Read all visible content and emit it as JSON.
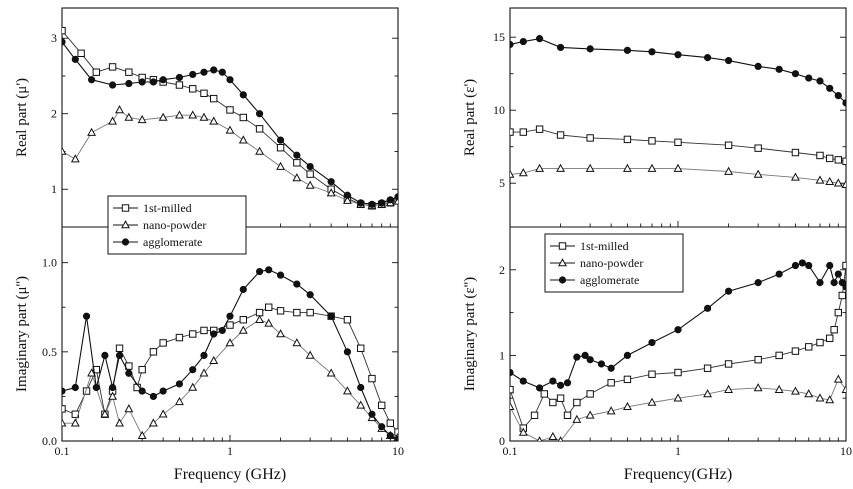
{
  "figure": {
    "background": "#ffffff",
    "ink": "#111111"
  },
  "chart_data": [
    {
      "type": "line",
      "panel": "permeability",
      "xlabel": "Frequency (GHz)",
      "xscale": "log",
      "xlim": [
        0.1,
        10
      ],
      "xticks": [
        0.1,
        1,
        10
      ],
      "xtick_labels": [
        "0.1",
        "1",
        "10"
      ],
      "legend": {
        "placement": "bottom-left of upper subplot",
        "entries": [
          {
            "label": "1st-milled",
            "marker": "open-square"
          },
          {
            "label": "nano-powder",
            "marker": "open-triangle"
          },
          {
            "label": "agglomerate",
            "marker": "filled-circle"
          }
        ]
      },
      "subplots": [
        {
          "ylabel": "Real part (μ')",
          "ylim": [
            0.5,
            3.4
          ],
          "yticks": [
            1,
            2,
            3
          ],
          "ytick_labels": [
            "1",
            "2",
            "3"
          ],
          "series": [
            {
              "name": "1st-milled",
              "marker": "open-square",
              "x": [
                0.1,
                0.13,
                0.16,
                0.2,
                0.25,
                0.3,
                0.35,
                0.4,
                0.5,
                0.6,
                0.7,
                0.8,
                1.0,
                1.2,
                1.5,
                2.0,
                2.5,
                3.0,
                4.0,
                5.0,
                6.0,
                7.0,
                8.0,
                9.0,
                10.0
              ],
              "y": [
                3.1,
                2.8,
                2.55,
                2.62,
                2.55,
                2.48,
                2.45,
                2.42,
                2.38,
                2.33,
                2.27,
                2.2,
                2.05,
                1.95,
                1.8,
                1.55,
                1.35,
                1.2,
                1.0,
                0.88,
                0.8,
                0.78,
                0.8,
                0.82,
                0.85
              ]
            },
            {
              "name": "nano-powder",
              "marker": "open-triangle",
              "x": [
                0.1,
                0.12,
                0.15,
                0.2,
                0.22,
                0.25,
                0.3,
                0.4,
                0.5,
                0.6,
                0.7,
                0.8,
                1.0,
                1.2,
                1.5,
                2.0,
                2.5,
                3.0,
                4.0,
                5.0,
                6.0,
                7.0,
                8.0,
                9.0,
                10.0
              ],
              "y": [
                1.5,
                1.4,
                1.75,
                1.9,
                2.05,
                1.95,
                1.92,
                1.95,
                1.98,
                1.98,
                1.95,
                1.9,
                1.78,
                1.65,
                1.5,
                1.3,
                1.15,
                1.05,
                0.95,
                0.85,
                0.8,
                0.78,
                0.8,
                0.82,
                0.84
              ]
            },
            {
              "name": "agglomerate",
              "marker": "filled-circle",
              "x": [
                0.1,
                0.12,
                0.15,
                0.2,
                0.25,
                0.3,
                0.35,
                0.4,
                0.5,
                0.6,
                0.7,
                0.8,
                0.9,
                1.0,
                1.2,
                1.5,
                2.0,
                2.5,
                3.0,
                4.0,
                5.0,
                6.0,
                7.0,
                8.0,
                9.0,
                10.0
              ],
              "y": [
                2.95,
                2.72,
                2.45,
                2.38,
                2.4,
                2.42,
                2.42,
                2.45,
                2.48,
                2.52,
                2.55,
                2.58,
                2.55,
                2.45,
                2.25,
                2.0,
                1.65,
                1.45,
                1.3,
                1.1,
                0.92,
                0.82,
                0.8,
                0.82,
                0.86,
                0.9
              ]
            }
          ]
        },
        {
          "ylabel": "Imaginary part (μ'')",
          "ylim": [
            0,
            1.2
          ],
          "yticks": [
            0,
            0.5,
            1.0
          ],
          "ytick_labels": [
            "0.0",
            "0.5",
            "1.0"
          ],
          "series": [
            {
              "name": "1st-milled",
              "marker": "open-square",
              "x": [
                0.1,
                0.12,
                0.14,
                0.16,
                0.18,
                0.2,
                0.22,
                0.25,
                0.28,
                0.3,
                0.35,
                0.4,
                0.5,
                0.6,
                0.7,
                0.8,
                1.0,
                1.2,
                1.5,
                1.7,
                2.0,
                2.5,
                3.0,
                4.0,
                5.0,
                6.0,
                7.0,
                8.0,
                9.0,
                10.0
              ],
              "y": [
                0.18,
                0.15,
                0.28,
                0.4,
                0.15,
                0.28,
                0.52,
                0.42,
                0.3,
                0.4,
                0.5,
                0.55,
                0.58,
                0.6,
                0.62,
                0.62,
                0.65,
                0.68,
                0.72,
                0.75,
                0.73,
                0.72,
                0.72,
                0.7,
                0.68,
                0.52,
                0.35,
                0.2,
                0.1,
                0.05
              ]
            },
            {
              "name": "nano-powder",
              "marker": "open-triangle",
              "x": [
                0.1,
                0.12,
                0.15,
                0.18,
                0.2,
                0.22,
                0.25,
                0.3,
                0.35,
                0.4,
                0.5,
                0.6,
                0.7,
                0.8,
                1.0,
                1.2,
                1.5,
                1.7,
                2.0,
                2.5,
                3.0,
                4.0,
                5.0,
                6.0,
                7.0,
                8.0,
                9.0,
                10.0
              ],
              "y": [
                0.1,
                0.1,
                0.38,
                0.15,
                0.25,
                0.1,
                0.18,
                0.03,
                0.1,
                0.15,
                0.22,
                0.3,
                0.38,
                0.45,
                0.55,
                0.62,
                0.68,
                0.66,
                0.6,
                0.55,
                0.48,
                0.38,
                0.28,
                0.2,
                0.13,
                0.07,
                0.03,
                0.02
              ]
            },
            {
              "name": "agglomerate",
              "marker": "filled-circle",
              "x": [
                0.1,
                0.12,
                0.14,
                0.16,
                0.18,
                0.2,
                0.22,
                0.25,
                0.3,
                0.35,
                0.4,
                0.5,
                0.6,
                0.7,
                0.8,
                0.9,
                1.0,
                1.2,
                1.5,
                1.7,
                2.0,
                2.5,
                3.0,
                4.0,
                5.0,
                6.0,
                7.0,
                8.0,
                9.0,
                10.0
              ],
              "y": [
                0.28,
                0.3,
                0.7,
                0.3,
                0.48,
                0.3,
                0.48,
                0.38,
                0.28,
                0.25,
                0.28,
                0.32,
                0.4,
                0.48,
                0.6,
                0.62,
                0.7,
                0.85,
                0.95,
                0.96,
                0.93,
                0.88,
                0.82,
                0.7,
                0.5,
                0.3,
                0.15,
                0.08,
                0.03,
                0.01
              ]
            }
          ]
        }
      ]
    },
    {
      "type": "line",
      "panel": "permittivity",
      "xlabel": "Frequency(GHz)",
      "xscale": "log",
      "xlim": [
        0.1,
        10
      ],
      "xticks": [
        0.1,
        1,
        10
      ],
      "xtick_labels": [
        "0.1",
        "1",
        "10"
      ],
      "legend": {
        "placement": "top-left of lower subplot",
        "entries": [
          {
            "label": "1st-milled",
            "marker": "open-square"
          },
          {
            "label": "nano-powder",
            "marker": "open-triangle"
          },
          {
            "label": "agglomerate",
            "marker": "filled-circle"
          }
        ]
      },
      "subplots": [
        {
          "ylabel": "Real part (ε')",
          "ylim": [
            2,
            17
          ],
          "yticks": [
            5,
            10,
            15
          ],
          "ytick_labels": [
            "5",
            "10",
            "15"
          ],
          "series": [
            {
              "name": "1st-milled",
              "marker": "open-square",
              "x": [
                0.1,
                0.12,
                0.15,
                0.2,
                0.3,
                0.5,
                0.7,
                1.0,
                2.0,
                3.0,
                5.0,
                7.0,
                8.0,
                9.0,
                10.0
              ],
              "y": [
                8.5,
                8.5,
                8.7,
                8.3,
                8.1,
                8.0,
                7.9,
                7.8,
                7.6,
                7.4,
                7.1,
                6.9,
                6.7,
                6.6,
                6.5
              ]
            },
            {
              "name": "nano-powder",
              "marker": "open-triangle",
              "x": [
                0.1,
                0.12,
                0.15,
                0.2,
                0.3,
                0.5,
                0.7,
                1.0,
                2.0,
                3.0,
                5.0,
                7.0,
                8.0,
                9.0,
                10.0
              ],
              "y": [
                5.6,
                5.7,
                6.0,
                6.0,
                6.0,
                6.0,
                6.0,
                6.0,
                5.8,
                5.6,
                5.4,
                5.2,
                5.1,
                5.0,
                4.9
              ]
            },
            {
              "name": "agglomerate",
              "marker": "filled-circle",
              "x": [
                0.1,
                0.12,
                0.15,
                0.2,
                0.3,
                0.5,
                0.7,
                1.0,
                1.5,
                2.0,
                3.0,
                4.0,
                5.0,
                6.0,
                7.0,
                8.0,
                9.0,
                10.0
              ],
              "y": [
                14.5,
                14.7,
                14.9,
                14.3,
                14.2,
                14.1,
                14.0,
                13.8,
                13.6,
                13.4,
                13.0,
                12.8,
                12.5,
                12.2,
                12.0,
                11.5,
                11.0,
                10.5
              ]
            }
          ]
        },
        {
          "ylabel": "Imaginary part (ε'')",
          "ylim": [
            0,
            2.5
          ],
          "yticks": [
            0,
            1,
            2
          ],
          "ytick_labels": [
            "0",
            "1",
            "2"
          ],
          "series": [
            {
              "name": "1st-milled",
              "marker": "open-square",
              "x": [
                0.1,
                0.12,
                0.14,
                0.16,
                0.18,
                0.2,
                0.22,
                0.25,
                0.3,
                0.4,
                0.5,
                0.7,
                1.0,
                1.5,
                2.0,
                3.0,
                4.0,
                5.0,
                6.0,
                7.0,
                8.0,
                8.5,
                9.0,
                9.5,
                10.0
              ],
              "y": [
                0.6,
                0.15,
                0.3,
                0.55,
                0.45,
                0.5,
                0.3,
                0.45,
                0.55,
                0.68,
                0.72,
                0.78,
                0.8,
                0.85,
                0.9,
                0.95,
                1.0,
                1.05,
                1.1,
                1.15,
                1.2,
                1.3,
                1.5,
                1.7,
                2.05
              ]
            },
            {
              "name": "nano-powder",
              "marker": "open-triangle",
              "x": [
                0.1,
                0.12,
                0.15,
                0.18,
                0.2,
                0.25,
                0.3,
                0.4,
                0.5,
                0.7,
                1.0,
                1.5,
                2.0,
                3.0,
                4.0,
                5.0,
                6.0,
                7.0,
                8.0,
                9.0,
                10.0
              ],
              "y": [
                0.4,
                0.1,
                0.0,
                0.05,
                0.0,
                0.25,
                0.3,
                0.35,
                0.4,
                0.45,
                0.5,
                0.55,
                0.6,
                0.62,
                0.6,
                0.58,
                0.55,
                0.5,
                0.48,
                0.72,
                0.6
              ]
            },
            {
              "name": "agglomerate",
              "marker": "filled-circle",
              "x": [
                0.1,
                0.12,
                0.15,
                0.18,
                0.2,
                0.22,
                0.25,
                0.28,
                0.3,
                0.35,
                0.4,
                0.5,
                0.7,
                1.0,
                1.5,
                2.0,
                3.0,
                4.0,
                5.0,
                5.5,
                6.0,
                7.0,
                8.0,
                8.5,
                9.0,
                9.5,
                10.0
              ],
              "y": [
                0.8,
                0.7,
                0.62,
                0.7,
                0.65,
                0.68,
                0.98,
                1.0,
                0.95,
                0.9,
                0.85,
                1.0,
                1.15,
                1.3,
                1.55,
                1.75,
                1.85,
                1.95,
                2.05,
                2.08,
                2.05,
                1.85,
                2.05,
                1.85,
                1.95,
                1.85,
                1.8
              ]
            }
          ]
        }
      ]
    }
  ]
}
